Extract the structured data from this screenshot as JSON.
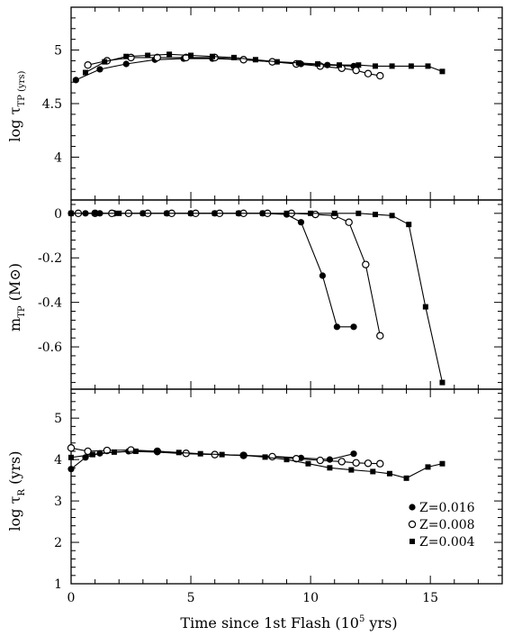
{
  "chart_data": [
    {
      "type": "line",
      "panel": "top",
      "ylabel_main": "log τ",
      "ylabel_sub": "TP (yrs)",
      "xlim": [
        0,
        18
      ],
      "ylim": [
        3.6,
        5.4
      ],
      "yticks": [
        4,
        4.5,
        5
      ],
      "ytick_labels": [
        "4",
        "4.5",
        "5"
      ],
      "grid": false,
      "series": [
        {
          "marker": "filled-circle",
          "x": [
            0.2,
            1.2,
            2.3,
            3.5,
            4.7,
            5.9,
            7.2,
            8.4,
            9.6,
            10.7,
            11.8
          ],
          "y": [
            4.72,
            4.82,
            4.87,
            4.91,
            4.92,
            4.92,
            4.91,
            4.89,
            4.87,
            4.86,
            4.85
          ]
        },
        {
          "marker": "open-circle",
          "x": [
            0.7,
            1.5,
            2.5,
            3.6,
            4.8,
            6.0,
            7.2,
            8.4,
            9.4,
            10.4,
            11.3,
            11.9,
            12.4,
            12.9
          ],
          "y": [
            4.86,
            4.9,
            4.93,
            4.93,
            4.93,
            4.93,
            4.91,
            4.89,
            4.87,
            4.85,
            4.83,
            4.81,
            4.78,
            4.76
          ]
        },
        {
          "marker": "filled-square",
          "x": [
            0.6,
            1.4,
            2.3,
            3.2,
            4.1,
            5.0,
            5.9,
            6.8,
            7.7,
            8.6,
            9.5,
            10.3,
            11.2,
            12.0,
            12.7,
            13.4,
            14.2,
            14.9,
            15.5
          ],
          "y": [
            4.79,
            4.89,
            4.94,
            4.95,
            4.96,
            4.95,
            4.94,
            4.93,
            4.91,
            4.89,
            4.88,
            4.87,
            4.86,
            4.86,
            4.85,
            4.85,
            4.85,
            4.85,
            4.8
          ]
        }
      ]
    },
    {
      "type": "line",
      "panel": "middle",
      "ylabel_main": "m",
      "ylabel_sub": "TP",
      "ylabel_unit": " (M⊙)",
      "xlim": [
        0,
        18
      ],
      "ylim": [
        -0.79,
        0.06
      ],
      "yticks": [
        0,
        -0.2,
        -0.4,
        -0.6
      ],
      "ytick_labels": [
        "0",
        "-0.2",
        "-0.4",
        "-0.6"
      ],
      "grid": false,
      "series": [
        {
          "marker": "filled-circle",
          "x": [
            0.0,
            0.6,
            1.2,
            1.8,
            2.4,
            3.0,
            4.0,
            5.0,
            6.0,
            7.0,
            8.0,
            9.0,
            9.6,
            10.5,
            11.1,
            11.8
          ],
          "y": [
            0,
            0,
            0,
            0,
            0,
            0,
            0,
            0,
            0,
            0,
            0,
            -0.005,
            -0.04,
            -0.28,
            -0.51,
            -0.51
          ]
        },
        {
          "marker": "open-circle",
          "x": [
            0.3,
            1.0,
            1.7,
            2.4,
            3.2,
            4.2,
            5.2,
            6.2,
            7.2,
            8.2,
            9.2,
            10.2,
            11.0,
            11.6,
            12.3,
            12.9
          ],
          "y": [
            0,
            0,
            0,
            0,
            0,
            0,
            0,
            0,
            0,
            0,
            0,
            -0.005,
            -0.01,
            -0.04,
            -0.23,
            -0.55
          ]
        },
        {
          "marker": "filled-square",
          "x": [
            0.0,
            1.0,
            2.0,
            3.0,
            4.0,
            5.0,
            6.0,
            7.0,
            8.0,
            9.0,
            10.0,
            11.0,
            12.0,
            12.7,
            13.4,
            14.1,
            14.8,
            15.5
          ],
          "y": [
            0,
            0,
            0,
            0,
            0,
            0,
            0,
            0,
            0,
            0,
            0,
            0,
            0,
            -0.005,
            -0.01,
            -0.05,
            -0.42,
            -0.76
          ]
        }
      ]
    },
    {
      "type": "line",
      "panel": "bottom",
      "ylabel_main": "log τ",
      "ylabel_sub": "R",
      "ylabel_unit": " (yrs)",
      "xlabel_main": "Time since 1st Flash (10",
      "xlabel_sup": "5",
      "xlabel_end": " yrs)",
      "xlim": [
        0,
        18
      ],
      "xticks": [
        0,
        5,
        10,
        15
      ],
      "xtick_labels": [
        "0",
        "5",
        "10",
        "15"
      ],
      "ylim": [
        1,
        5.7
      ],
      "yticks": [
        1,
        2,
        3,
        4,
        5
      ],
      "ytick_labels": [
        "1",
        "2",
        "3",
        "4",
        "5"
      ],
      "grid": false,
      "legend_position": "bottom-right",
      "series": [
        {
          "name": "Z=0.016",
          "marker": "filled-circle",
          "x": [
            0.0,
            0.6,
            1.2,
            2.4,
            3.6,
            4.8,
            6.0,
            7.2,
            8.4,
            9.6,
            10.8,
            11.8
          ],
          "y": [
            3.77,
            4.05,
            4.15,
            4.2,
            4.18,
            4.14,
            4.12,
            4.1,
            4.08,
            4.04,
            4.0,
            4.14
          ]
        },
        {
          "name": "Z=0.008",
          "marker": "open-circle",
          "x": [
            0.0,
            0.7,
            1.5,
            2.5,
            3.6,
            4.8,
            6.0,
            7.2,
            8.4,
            9.4,
            10.4,
            11.3,
            11.9,
            12.4,
            12.9
          ],
          "y": [
            4.28,
            4.2,
            4.22,
            4.23,
            4.2,
            4.15,
            4.12,
            4.1,
            4.07,
            4.02,
            3.98,
            3.95,
            3.92,
            3.91,
            3.9
          ]
        },
        {
          "name": "Z=0.004",
          "marker": "filled-square",
          "x": [
            0.0,
            0.9,
            1.8,
            2.7,
            3.6,
            4.5,
            5.4,
            6.3,
            7.2,
            8.1,
            9.0,
            9.9,
            10.8,
            11.7,
            12.6,
            13.3,
            14.0,
            14.9,
            15.5
          ],
          "y": [
            4.05,
            4.12,
            4.18,
            4.2,
            4.2,
            4.17,
            4.14,
            4.12,
            4.1,
            4.06,
            4.0,
            3.9,
            3.8,
            3.75,
            3.71,
            3.66,
            3.55,
            3.82,
            3.9
          ]
        }
      ]
    }
  ]
}
